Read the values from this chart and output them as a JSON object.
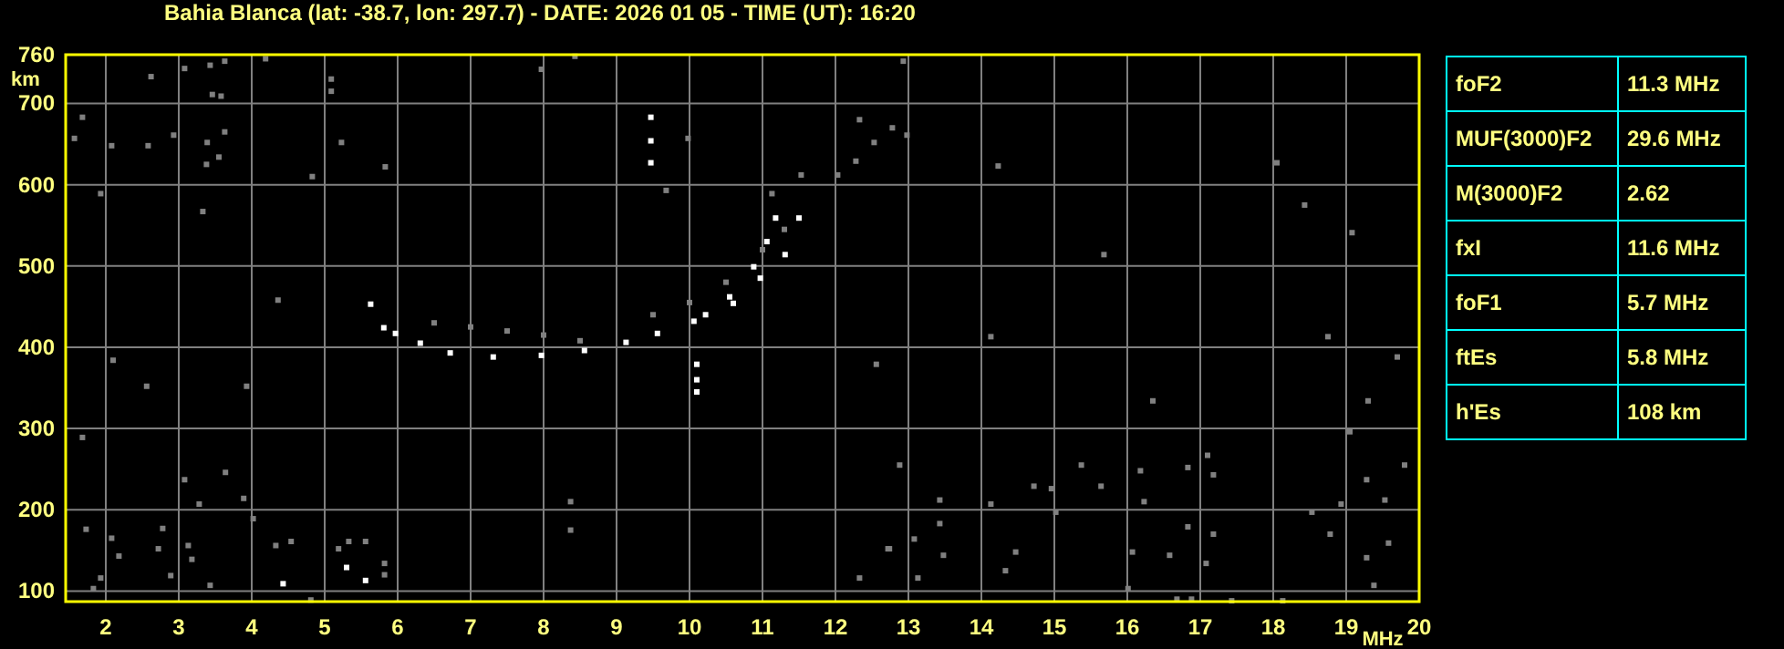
{
  "chart_data": [
    {
      "type": "scatter",
      "title": "Bahia Blanca (lat: -38.7, lon: 297.7) - DATE: 2026 01 05 - TIME (UT): 16:20",
      "xlabel": "MHz",
      "ylabel": "km",
      "xlim": [
        1.45,
        20
      ],
      "ylim": [
        87,
        760
      ],
      "xticks": [
        2,
        3,
        4,
        5,
        6,
        7,
        8,
        9,
        10,
        11,
        12,
        13,
        14,
        15,
        16,
        17,
        18,
        19,
        20
      ],
      "yticks": [
        100,
        200,
        300,
        400,
        500,
        600,
        700,
        760
      ],
      "grid": true,
      "marker": "square",
      "series": [
        {
          "color": "#ffffff",
          "x": [
            5.63,
            5.81,
            5.97,
            6.31,
            6.72,
            7.31,
            7.97,
            8.56,
            9.13,
            9.56,
            10.06,
            10.22,
            10.55,
            10.88,
            11.06,
            11.18,
            10.6,
            10.97,
            11.31,
            11.5,
            10.1,
            10.1,
            10.1,
            9.47,
            9.47,
            9.47,
            4.43,
            5.56,
            5.3
          ],
          "values": [
            453,
            424,
            417,
            405,
            393,
            388,
            390,
            396,
            406,
            417,
            432,
            440,
            462,
            499,
            530,
            559,
            454,
            485,
            514,
            559,
            379,
            345,
            360,
            683,
            654,
            627,
            109,
            113,
            129
          ]
        },
        {
          "color": "#808080",
          "x": [
            6.5,
            7,
            7.5,
            8,
            8.5,
            9.5,
            10,
            10.5,
            11,
            11.3,
            1.68,
            1.57,
            2.08,
            2.58,
            2.93,
            1.93,
            2.62,
            3.08,
            3.43,
            3.63,
            3.46,
            3.58,
            3.63,
            3.39,
            3.55,
            3.38,
            3.33,
            4.19,
            5.09,
            5.09,
            5.23,
            4.83,
            5.83,
            7.97,
            8.43,
            9.98,
            9.68,
            11.53,
            11.13,
            12.03,
            12.28,
            12.33,
            12.53,
            12.78,
            12.93,
            1.83,
            1.93,
            2.08,
            2.18,
            2.72,
            2.78,
            2.89,
            3.08,
            3.13,
            3.18,
            3.28,
            3.43,
            3.64,
            3.89,
            4.02,
            4.54,
            4.33,
            4.81,
            5.19,
            5.33,
            5.56,
            5.82,
            5.82,
            8.37,
            8.37,
            12.33,
            12.72,
            12.88,
            13.08,
            12.74,
            13.43,
            13.48,
            13.13,
            14.13,
            14.33,
            14.47,
            14.72,
            15.02,
            15.37,
            15.64,
            16.07,
            16.18,
            16.23,
            16.58,
            16.83,
            16.83,
            17.08,
            17.18,
            17.18,
            18.53,
            18.78,
            18.93,
            19.28,
            19.28,
            19.53,
            19.58,
            19.38,
            16.01,
            16.68,
            16.88,
            17.43,
            18.13,
            18.43,
            18.05,
            19.08,
            19.3,
            19.7,
            19.8,
            19.05,
            18.75,
            14.23,
            12.98,
            14.13,
            15.68,
            16.35,
            17.1,
            12.56,
            13.43,
            14.96,
            1.68,
            2.1,
            2.56,
            4.36,
            3.93,
            1.73
          ],
          "values": [
            430,
            425,
            420,
            415,
            408,
            440,
            455,
            480,
            520,
            545,
            683,
            657,
            648,
            648,
            661,
            589,
            733,
            743,
            747,
            752,
            711,
            709,
            665,
            652,
            634,
            625,
            567,
            755,
            730,
            715,
            652,
            610,
            622,
            742,
            758,
            657,
            593,
            612,
            589,
            612,
            629,
            680,
            652,
            670,
            752,
            103,
            116,
            165,
            143,
            152,
            177,
            119,
            237,
            156,
            139,
            207,
            107,
            246,
            214,
            189,
            161,
            156,
            89,
            152,
            161,
            161,
            134,
            120,
            210,
            175,
            116,
            152,
            255,
            164,
            152,
            212,
            144,
            116,
            207,
            125,
            148,
            229,
            197,
            255,
            229,
            148,
            248,
            210,
            144,
            252,
            179,
            134,
            170,
            243,
            197,
            170,
            207,
            237,
            141,
            212,
            159,
            107,
            103,
            90,
            90,
            88,
            88,
            575,
            627,
            541,
            334,
            388,
            255,
            296,
            413,
            623,
            661,
            413,
            514,
            334,
            267,
            379,
            183,
            226,
            289,
            384,
            352,
            458,
            352,
            176
          ]
        }
      ]
    },
    {
      "type": "other",
      "categories": [
        "foF2",
        "MUF(3000)F2",
        "M(3000)F2",
        "fxI",
        "foF1",
        "ftEs",
        "h'Es"
      ],
      "annotations": [
        "11.3 MHz",
        "29.6 MHz",
        "2.62",
        "11.6 MHz",
        "5.7 MHz",
        "5.8 MHz",
        "108 km"
      ]
    }
  ]
}
